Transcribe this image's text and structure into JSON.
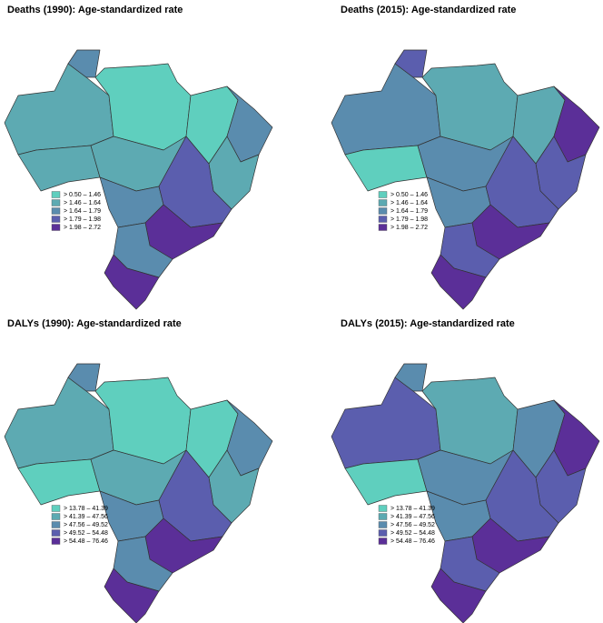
{
  "panels": [
    {
      "title": "Deaths (1990): Age-standardized rate",
      "legend": [
        {
          "label": "> 0.50 – 1.46",
          "color": "#5fcfbe"
        },
        {
          "label": "> 1.46 – 1.64",
          "color": "#5daab2"
        },
        {
          "label": "> 1.64 – 1.79",
          "color": "#5a8cae"
        },
        {
          "label": "> 1.79 – 1.98",
          "color": "#5b5eae"
        },
        {
          "label": "> 1.98 – 2.72",
          "color": "#5b2f98"
        }
      ]
    },
    {
      "title": "Deaths (2015): Age-standardized rate",
      "legend": [
        {
          "label": "> 0.50 – 1.46",
          "color": "#5fcfbe"
        },
        {
          "label": "> 1.46 – 1.64",
          "color": "#5daab2"
        },
        {
          "label": "> 1.64 – 1.79",
          "color": "#5a8cae"
        },
        {
          "label": "> 1.79 – 1.98",
          "color": "#5b5eae"
        },
        {
          "label": "> 1.98 – 2.72",
          "color": "#5b2f98"
        }
      ]
    },
    {
      "title": "DALYs (1990): Age-standardized rate",
      "legend": [
        {
          "label": "> 13.78 – 41.39",
          "color": "#5fcfbe"
        },
        {
          "label": "> 41.39 – 47.56",
          "color": "#5daab2"
        },
        {
          "label": "> 47.56 – 49.52",
          "color": "#5a8cae"
        },
        {
          "label": "> 49.52 – 54.48",
          "color": "#5b5eae"
        },
        {
          "label": "> 54.48 – 76.46",
          "color": "#5b2f98"
        }
      ]
    },
    {
      "title": "DALYs (2015): Age-standardized rate",
      "legend": [
        {
          "label": "> 13.78 – 41.39",
          "color": "#5fcfbe"
        },
        {
          "label": "> 41.39 – 47.56",
          "color": "#5daab2"
        },
        {
          "label": "> 47.56 – 49.52",
          "color": "#5a8cae"
        },
        {
          "label": "> 49.52 – 54.48",
          "color": "#5b5eae"
        },
        {
          "label": "> 54.48 – 76.46",
          "color": "#5b2f98"
        }
      ]
    }
  ]
}
